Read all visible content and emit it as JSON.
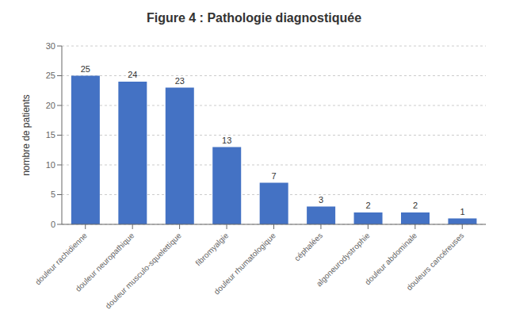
{
  "chart_data": {
    "type": "bar",
    "title": "Figure 4 : Pathologie diagnostiquée",
    "ylabel": "nombre de patients",
    "categories": [
      "douleur rachidienne",
      "douleur neuropathique",
      "douleur musculo-squelettique",
      "fibromyalgie",
      "douleur rhumatologique",
      "céphalées",
      "algoneurodystrophie",
      "douleur abdominale",
      "douleurs cancéreuses"
    ],
    "values": [
      25,
      24,
      23,
      13,
      7,
      3,
      2,
      2,
      1
    ],
    "color": "#4472C4",
    "ylim": [
      0,
      30
    ],
    "yticks": [
      0,
      5,
      10,
      15,
      20,
      25,
      30
    ],
    "grid": true,
    "data_labels": true
  }
}
